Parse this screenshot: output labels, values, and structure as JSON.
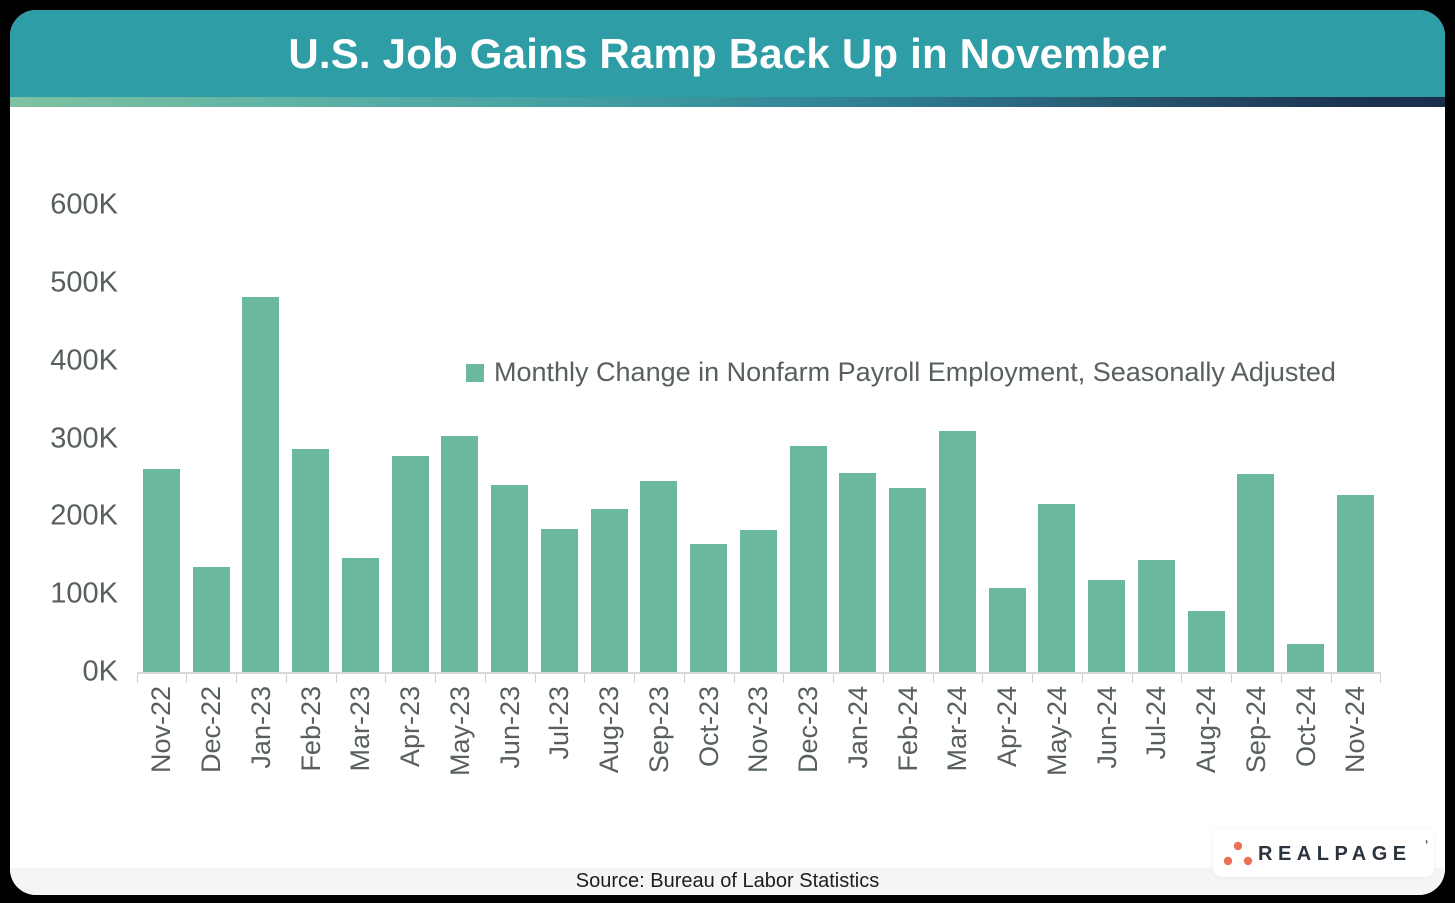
{
  "header": {
    "title": "U.S. Job Gains Ramp Back Up in November"
  },
  "chart_data": {
    "type": "bar",
    "title": "U.S. Job Gains Ramp Back Up in November",
    "legend": "Monthly Change in Nonfarm Payroll Employment, Seasonally Adjusted",
    "legend_position": "top-center",
    "grid": false,
    "xlabel": "",
    "ylabel": "",
    "ylim": [
      0,
      600
    ],
    "y_ticks": [
      {
        "value": 0,
        "label": "0K"
      },
      {
        "value": 100,
        "label": "100K"
      },
      {
        "value": 200,
        "label": "200K"
      },
      {
        "value": 300,
        "label": "300K"
      },
      {
        "value": 400,
        "label": "400K"
      },
      {
        "value": 500,
        "label": "500K"
      },
      {
        "value": 600,
        "label": "600K"
      }
    ],
    "categories": [
      "Nov-22",
      "Dec-22",
      "Jan-23",
      "Feb-23",
      "Mar-23",
      "Apr-23",
      "May-23",
      "Jun-23",
      "Jul-23",
      "Aug-23",
      "Sep-23",
      "Oct-23",
      "Nov-23",
      "Dec-23",
      "Jan-24",
      "Feb-24",
      "Mar-24",
      "Apr-24",
      "May-24",
      "Jun-24",
      "Jul-24",
      "Aug-24",
      "Sep-24",
      "Oct-24",
      "Nov-24"
    ],
    "values": [
      261,
      135,
      482,
      287,
      146,
      278,
      303,
      240,
      184,
      210,
      246,
      165,
      182,
      290,
      256,
      236,
      310,
      108,
      216,
      118,
      144,
      78,
      255,
      36,
      227
    ],
    "values_unit": "K"
  },
  "footer": {
    "source": "Source: Bureau of Labor Statistics",
    "logo_text": "REALPAGE",
    "logo_mark": "’"
  },
  "colors": {
    "bar": "#6ab89e",
    "header_background": "#2e9da6",
    "gradient_left": "#7fc2a2",
    "gradient_right": "#1a2e4c",
    "axis_text": "#58605f",
    "axis_line": "#d9d9d9",
    "source_strip": "#f5f5f6",
    "logo_dot": "#e87258",
    "logo_text_color": "#2b343c"
  }
}
